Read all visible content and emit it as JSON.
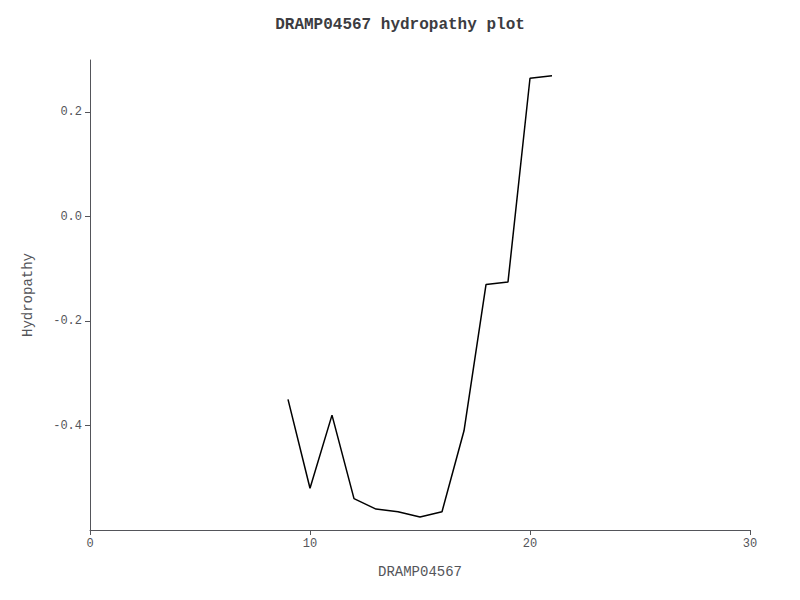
{
  "chart_data": {
    "type": "line",
    "title": "DRAMP04567 hydropathy plot",
    "xlabel": "DRAMP04567",
    "ylabel": "Hydropathy",
    "x": [
      9,
      10,
      11,
      12,
      13,
      14,
      15,
      16,
      17,
      18,
      19,
      20,
      21
    ],
    "values": [
      -0.35,
      -0.52,
      -0.38,
      -0.54,
      -0.56,
      -0.565,
      -0.575,
      -0.565,
      -0.41,
      -0.13,
      -0.125,
      0.265,
      0.27
    ],
    "color": "#000000",
    "xlim": [
      0,
      30
    ],
    "ylim": [
      -0.6,
      0.3
    ],
    "xticks": [
      0,
      10,
      20,
      30
    ],
    "yticks": [
      -0.4,
      -0.2,
      {
        "value": 0,
        "label": "0.0"
      },
      0.2
    ],
    "grid": false
  }
}
